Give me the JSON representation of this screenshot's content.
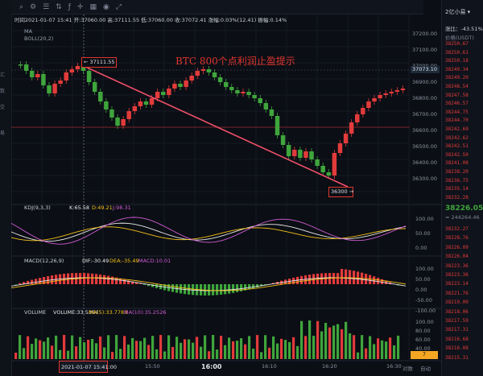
{
  "toolbar": {
    "icons": [
      "search-icon",
      "gear-icon",
      "settings-icon",
      "adjust-icon",
      "indicator-icon",
      "crosshair-icon",
      "layout-icon",
      "camera-icon",
      "fullscreen-icon"
    ]
  },
  "header": {
    "info_line": "时间2021-01-07 15:41 开:37060.00 高:37111.55 低:37060.00 收:37072.41 涨幅:0.03%(12.41) 振幅:0.14%",
    "ma_label": "MA",
    "boll_label": "BOLL(20,2)"
  },
  "annotation": {
    "title": "BTC    800个点利润止盈提示",
    "high_tag": "← 37111.55",
    "low_tag": "36300 →",
    "time_tag": "2021-01-07 15:41:00"
  },
  "price_axis": [
    "37200.00",
    "37100.00",
    "37000.00",
    "36900.00",
    "36800.00",
    "36700.00",
    "36600.00",
    "36500.00",
    "36400.00",
    "36300.00"
  ],
  "current_price_tag": "37073.10",
  "time_axis": [
    "15:50",
    "16:00",
    "16:10",
    "16:20",
    "16:30"
  ],
  "panels": {
    "kdj": {
      "label": "KDJ(9,3,3)",
      "k": "K:65.58",
      "d": "D:49.21",
      "j": "J:98.31",
      "ticks": [
        "100.00",
        "50.00",
        "0.00"
      ]
    },
    "macd": {
      "label": "MACD(12,26,9)",
      "dif": "DIF:-30.49",
      "dea": "DEA:-35.49",
      "macd": "MACD:10.01",
      "ticks": [
        "100.00",
        "50.00",
        "0.00",
        "-50.00",
        "-100.00"
      ]
    },
    "volume": {
      "label": "VOLUME",
      "vol": "VOLUME:33.5364",
      "ma5": "MA(5):33.7783",
      "ma10": "MA(10):35.2526",
      "ticks": [
        "100.00",
        "80.00",
        "60.00",
        "40.00",
        "20.00"
      ]
    }
  },
  "right_panel": {
    "interval": "2亿小易 ▾",
    "rate_label": "涨比：-43.51%",
    "price_unit": "价格(USDT)",
    "asks": [
      "38250.67",
      "38250.61",
      "38250.18",
      "38249.34",
      "38249.20",
      "38248.54",
      "38247.58",
      "38246.57",
      "38244.75",
      "38244.70",
      "38242.69",
      "38242.62",
      "38242.51",
      "38242.50",
      "38241.08",
      "38238.20",
      "38236.75",
      "38235.14",
      "38232.28"
    ],
    "last_price": "38226.05",
    "last_price_sub": "≈ 244264.46",
    "bids": [
      "38232.27",
      "38228.76",
      "38226.09",
      "38226.04",
      "38223.36",
      "38223.36",
      "38223.14",
      "38221.76",
      "38219.00",
      "38218.06",
      "38217.59",
      "38217.31",
      "38216.68",
      "38216.08",
      "38215.31"
    ]
  },
  "left_strip": {
    "labels": [
      "汇",
      "数",
      "交",
      "易"
    ]
  },
  "bottom_bar": {
    "badge": "7",
    "tools": [
      "对数",
      "自动"
    ]
  },
  "colors": {
    "up": "#e23b3b",
    "down": "#3fa53c",
    "background": "#0b0e14",
    "annotation": "#e0362f",
    "accent": "#f5a623"
  }
}
